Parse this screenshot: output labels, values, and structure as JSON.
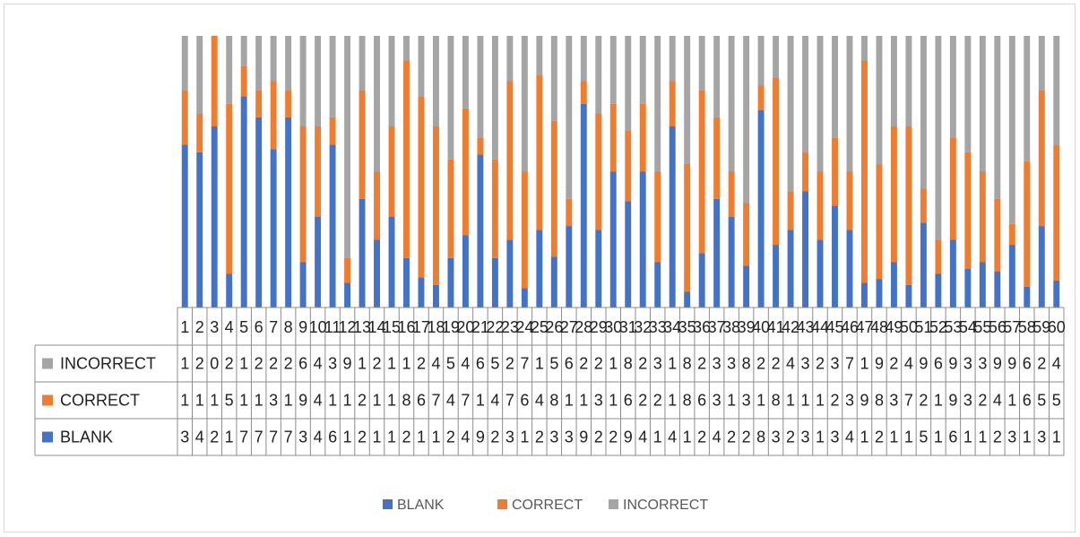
{
  "chart_data": {
    "type": "bar",
    "stacked": true,
    "percent_stacked": true,
    "categories": [
      "1",
      "2",
      "3",
      "4",
      "5",
      "6",
      "7",
      "8",
      "9",
      "10",
      "11",
      "12",
      "13",
      "14",
      "15",
      "16",
      "17",
      "18",
      "19",
      "20",
      "21",
      "22",
      "23",
      "24",
      "25",
      "26",
      "27",
      "28",
      "29",
      "30",
      "31",
      "32",
      "33",
      "34",
      "35",
      "36",
      "37",
      "38",
      "39",
      "40",
      "41",
      "42",
      "43",
      "44",
      "45",
      "46",
      "47",
      "48",
      "49",
      "50",
      "51",
      "52",
      "53",
      "54",
      "55",
      "56",
      "57",
      "58",
      "59",
      "60"
    ],
    "series": [
      {
        "name": "BLANK",
        "color": "#4472c4",
        "values": [
          3,
          4,
          2,
          1,
          7,
          7,
          7,
          7,
          3,
          4,
          6,
          1,
          2,
          1,
          1,
          2,
          1,
          1,
          2,
          4,
          9,
          2,
          3,
          1,
          2,
          3,
          3,
          9,
          2,
          2,
          9,
          4,
          1,
          4,
          1,
          2,
          4,
          2,
          2,
          8,
          3,
          2,
          3,
          1,
          3,
          4,
          1,
          2,
          1,
          1,
          5,
          1,
          6,
          1,
          1,
          2,
          3,
          1,
          3,
          1
        ]
      },
      {
        "name": "CORRECT",
        "color": "#ed7d31",
        "values": [
          1,
          1,
          1,
          5,
          1,
          1,
          3,
          1,
          9,
          4,
          1,
          1,
          2,
          1,
          1,
          8,
          6,
          7,
          4,
          7,
          1,
          4,
          7,
          6,
          4,
          8,
          1,
          1,
          3,
          1,
          6,
          2,
          2,
          1,
          8,
          6,
          3,
          1,
          3,
          1,
          8,
          1,
          1,
          1,
          2,
          3,
          9,
          8,
          3,
          7,
          2,
          1,
          9,
          3,
          2,
          4,
          1,
          6,
          5,
          5
        ]
      },
      {
        "name": "INCORRECT",
        "color": "#a5a5a5",
        "values": [
          1,
          2,
          0,
          2,
          1,
          2,
          2,
          2,
          6,
          4,
          3,
          9,
          1,
          2,
          1,
          1,
          2,
          4,
          5,
          4,
          6,
          5,
          2,
          7,
          1,
          5,
          6,
          2,
          2,
          1,
          8,
          2,
          3,
          1,
          8,
          2,
          3,
          3,
          8,
          2,
          2,
          4,
          3,
          2,
          3,
          7,
          1,
          9,
          2,
          4,
          9,
          6,
          9,
          3,
          3,
          9,
          9,
          6,
          2,
          4
        ]
      }
    ],
    "legend": [
      "BLANK",
      "CORRECT",
      "INCORRECT"
    ],
    "legend_position": "bottom",
    "data_table": true,
    "grid": false,
    "xlabel": "",
    "ylabel": ""
  }
}
